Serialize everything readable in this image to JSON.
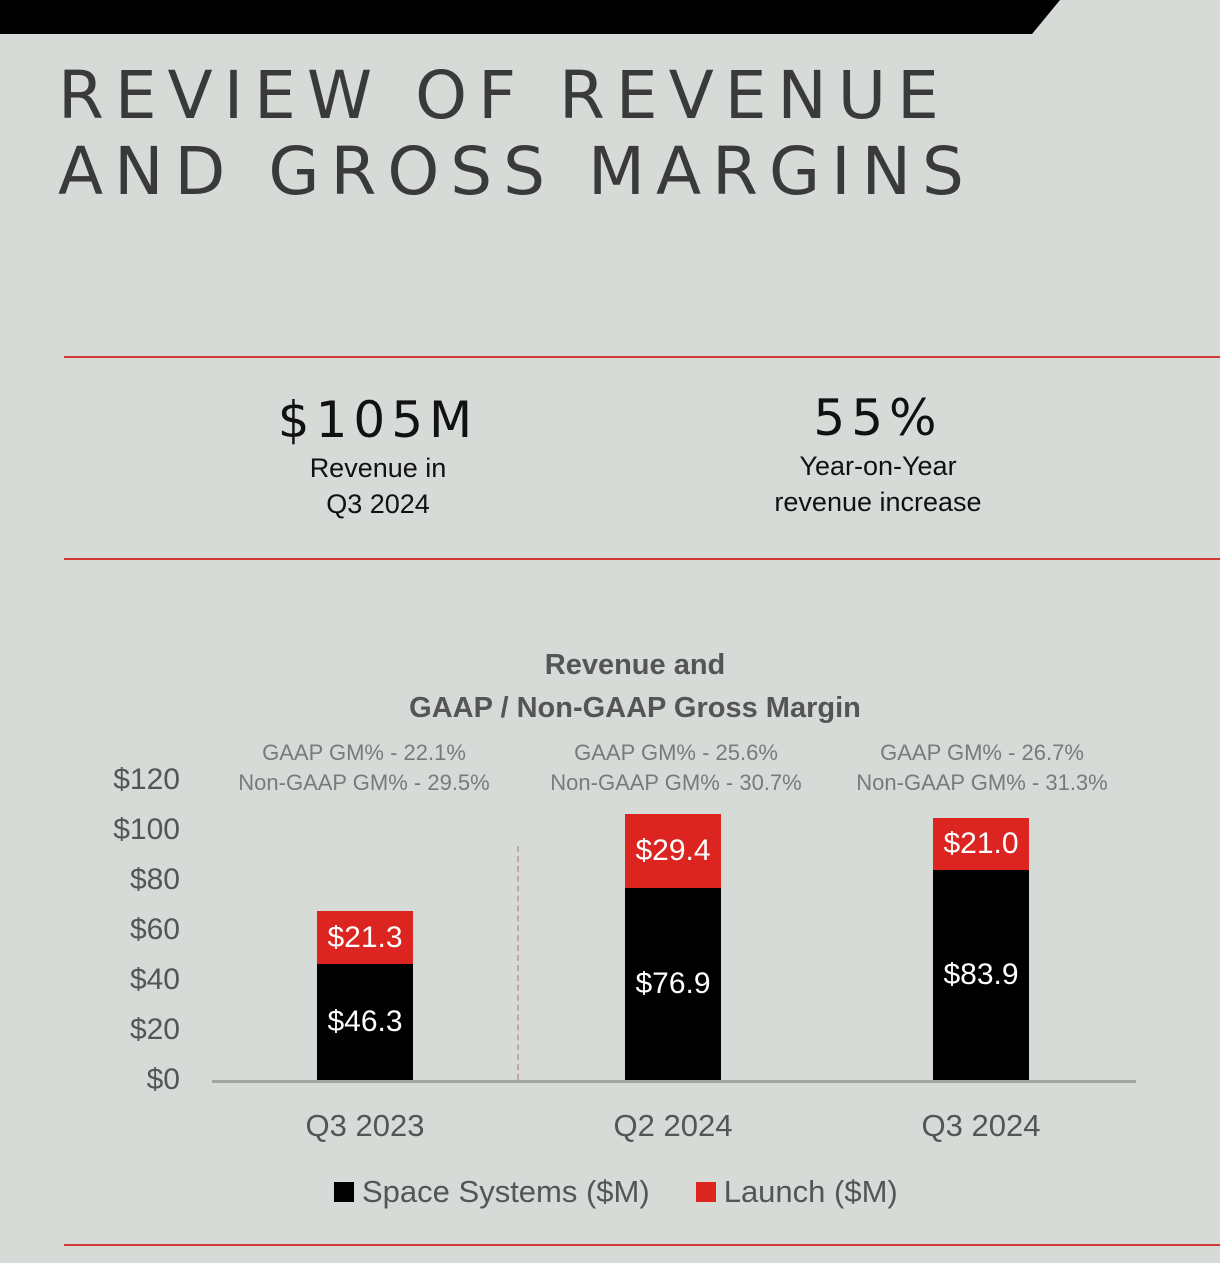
{
  "header": {
    "title_line1": "REVIEW OF REVENUE",
    "title_line2": "AND GROSS MARGINS"
  },
  "kpis": [
    {
      "value": "$105M",
      "label_line1": "Revenue in",
      "label_line2": "Q3 2024"
    },
    {
      "value": "55%",
      "label_line1": "Year-on-Year",
      "label_line2": "revenue increase"
    }
  ],
  "colors": {
    "background": "#d6dbd7",
    "rule": "#d03a36",
    "space_systems": "#000000",
    "launch": "#dc2420"
  },
  "chart_data": {
    "type": "bar",
    "stacked": true,
    "title_line1": "Revenue and",
    "title_line2": "GAAP / Non-GAAP Gross Margin",
    "categories": [
      "Q3 2023",
      "Q2 2024",
      "Q3 2024"
    ],
    "series": [
      {
        "name": "Space Systems ($M)",
        "values": [
          46.3,
          76.9,
          83.9
        ],
        "labels": [
          "$46.3",
          "$76.9",
          "$83.9"
        ]
      },
      {
        "name": "Launch ($M)",
        "values": [
          21.3,
          29.4,
          21.0
        ],
        "labels": [
          "$21.3",
          "$29.4",
          "$21.0"
        ]
      }
    ],
    "annotations": [
      {
        "gaap": "GAAP GM% - 22.1%",
        "non_gaap": "Non-GAAP GM% - 29.5%"
      },
      {
        "gaap": "GAAP GM% - 25.6%",
        "non_gaap": "Non-GAAP GM% - 30.7%"
      },
      {
        "gaap": "GAAP GM% - 26.7%",
        "non_gaap": "Non-GAAP GM% - 31.3%"
      }
    ],
    "yticks": [
      "$0",
      "$20",
      "$40",
      "$60",
      "$80",
      "$100",
      "$120"
    ],
    "ylim": [
      0,
      120
    ],
    "grid": false,
    "legend_position": "bottom"
  }
}
